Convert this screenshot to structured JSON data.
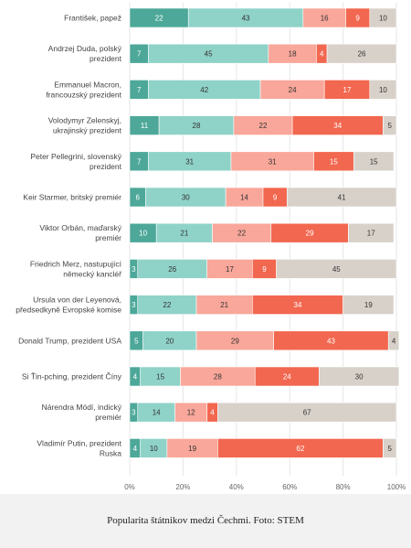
{
  "caption": "Popularita štátnikov medzi Čechmi. Foto: STEM",
  "chart_data": {
    "type": "bar",
    "orientation": "horizontal",
    "stacked": true,
    "xlim": [
      0,
      100
    ],
    "x_ticks": [
      "0%",
      "20%",
      "40%",
      "60%",
      "80%",
      "100%"
    ],
    "grid": true,
    "legend": "none",
    "colors": [
      "#4da899",
      "#8fd2c8",
      "#f8a79a",
      "#f2674f",
      "#d8d1ca"
    ],
    "categories": [
      [
        "František, papež"
      ],
      [
        "Andrzej Duda, polský",
        "prezident"
      ],
      [
        "Emmanuel Macron,",
        "francouzský prezident"
      ],
      [
        "Volodymyr Zelenskyj,",
        "ukrajinský prezident"
      ],
      [
        "Peter Pellegrini, slovenský",
        "prezident"
      ],
      [
        "Keir Starmer, britský premiér"
      ],
      [
        "Viktor Orbán, maďarský",
        "premiér"
      ],
      [
        "Friedrich Merz, nastupující",
        "německý kancléř"
      ],
      [
        "Ursula von der Leyenová,",
        "předsedkyně Evropské komise"
      ],
      [
        "Donald Trump, prezident USA"
      ],
      [
        "Si Ťin-pching, prezident Číny"
      ],
      [
        "Nárendra Módí, indický",
        "premiér"
      ],
      [
        "Vladimír Putin, prezident",
        "Ruska"
      ]
    ],
    "series": [
      {
        "values": [
          22,
          7,
          7,
          11,
          7,
          6,
          10,
          3,
          3,
          5,
          4,
          3,
          4
        ]
      },
      {
        "values": [
          43,
          45,
          42,
          28,
          31,
          30,
          21,
          26,
          22,
          20,
          15,
          14,
          10
        ]
      },
      {
        "values": [
          16,
          18,
          24,
          22,
          31,
          14,
          22,
          17,
          21,
          29,
          28,
          12,
          19
        ]
      },
      {
        "values": [
          9,
          4,
          17,
          34,
          15,
          9,
          29,
          9,
          34,
          43,
          24,
          4,
          62
        ]
      },
      {
        "values": [
          10,
          26,
          10,
          5,
          15,
          41,
          17,
          45,
          19,
          4,
          30,
          67,
          5
        ]
      }
    ]
  }
}
